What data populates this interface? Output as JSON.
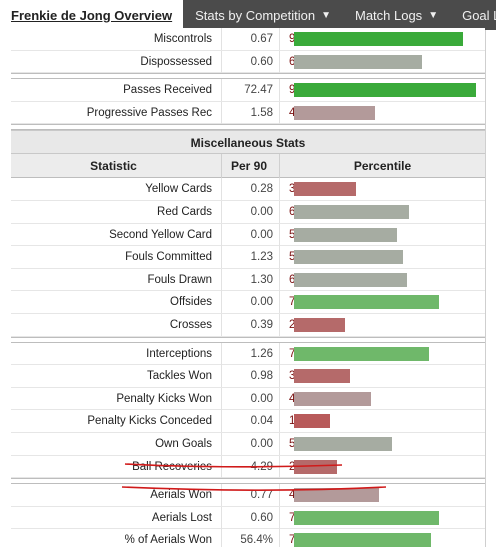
{
  "nav": {
    "items": [
      {
        "label": "Frenkie de Jong Overview",
        "active": true,
        "caret": false
      },
      {
        "label": "Stats by Competition",
        "active": false,
        "caret": true
      },
      {
        "label": "Match Logs",
        "active": false,
        "caret": true
      },
      {
        "label": "Goal Logs",
        "active": false,
        "caret": false
      }
    ]
  },
  "colors": {
    "high": "#3aaa3a",
    "midhigh": "#6fb86a",
    "neutral": "#a6aca2",
    "lowmid": "#b39a9a",
    "low": "#b56a6a",
    "lowest": "#b85a5a"
  },
  "top_rows": [
    {
      "stat": "Miscontrols",
      "per90": "0.67",
      "pct": "90",
      "pct_value": 90
    },
    {
      "stat": "Dispossessed",
      "per90": "0.60",
      "pct": "68",
      "pct_value": 68
    }
  ],
  "top_rows2": [
    {
      "stat": "Passes Received",
      "per90": "72.47",
      "pct": "97",
      "pct_value": 97
    },
    {
      "stat": "Progressive Passes Rec",
      "per90": "1.58",
      "pct": "43",
      "pct_value": 43
    }
  ],
  "misc": {
    "title": "Miscellaneous Stats",
    "col_stat": "Statistic",
    "col_per90": "Per 90",
    "col_pct": "Percentile",
    "group1": [
      {
        "stat": "Yellow Cards",
        "per90": "0.28",
        "pct": "33",
        "pct_value": 33
      },
      {
        "stat": "Red Cards",
        "per90": "0.00",
        "pct": "61",
        "pct_value": 61
      },
      {
        "stat": "Second Yellow Card",
        "per90": "0.00",
        "pct": "55",
        "pct_value": 55
      },
      {
        "stat": "Fouls Committed",
        "per90": "1.23",
        "pct": "58",
        "pct_value": 58
      },
      {
        "stat": "Fouls Drawn",
        "per90": "1.30",
        "pct": "60",
        "pct_value": 60
      },
      {
        "stat": "Offsides",
        "per90": "0.00",
        "pct": "77",
        "pct_value": 77
      },
      {
        "stat": "Crosses",
        "per90": "0.39",
        "pct": "27",
        "pct_value": 27
      }
    ],
    "group2": [
      {
        "stat": "Interceptions",
        "per90": "1.26",
        "pct": "72",
        "pct_value": 72
      },
      {
        "stat": "Tackles Won",
        "per90": "0.98",
        "pct": "30",
        "pct_value": 30
      },
      {
        "stat": "Penalty Kicks Won",
        "per90": "0.00",
        "pct": "41",
        "pct_value": 41
      },
      {
        "stat": "Penalty Kicks Conceded",
        "per90": "0.04",
        "pct": "19",
        "pct_value": 19
      },
      {
        "stat": "Own Goals",
        "per90": "0.00",
        "pct": "52",
        "pct_value": 52
      },
      {
        "stat": "Ball Recoveries",
        "per90": "4.29",
        "pct": "23",
        "pct_value": 23
      }
    ],
    "group3": [
      {
        "stat": "Aerials Won",
        "per90": "0.77",
        "pct": "45",
        "pct_value": 45
      },
      {
        "stat": "Aerials Lost",
        "per90": "0.60",
        "pct": "77",
        "pct_value": 77
      },
      {
        "stat": "% of Aerials Won",
        "per90": "56.4%",
        "pct": "73",
        "pct_value": 73
      }
    ]
  }
}
